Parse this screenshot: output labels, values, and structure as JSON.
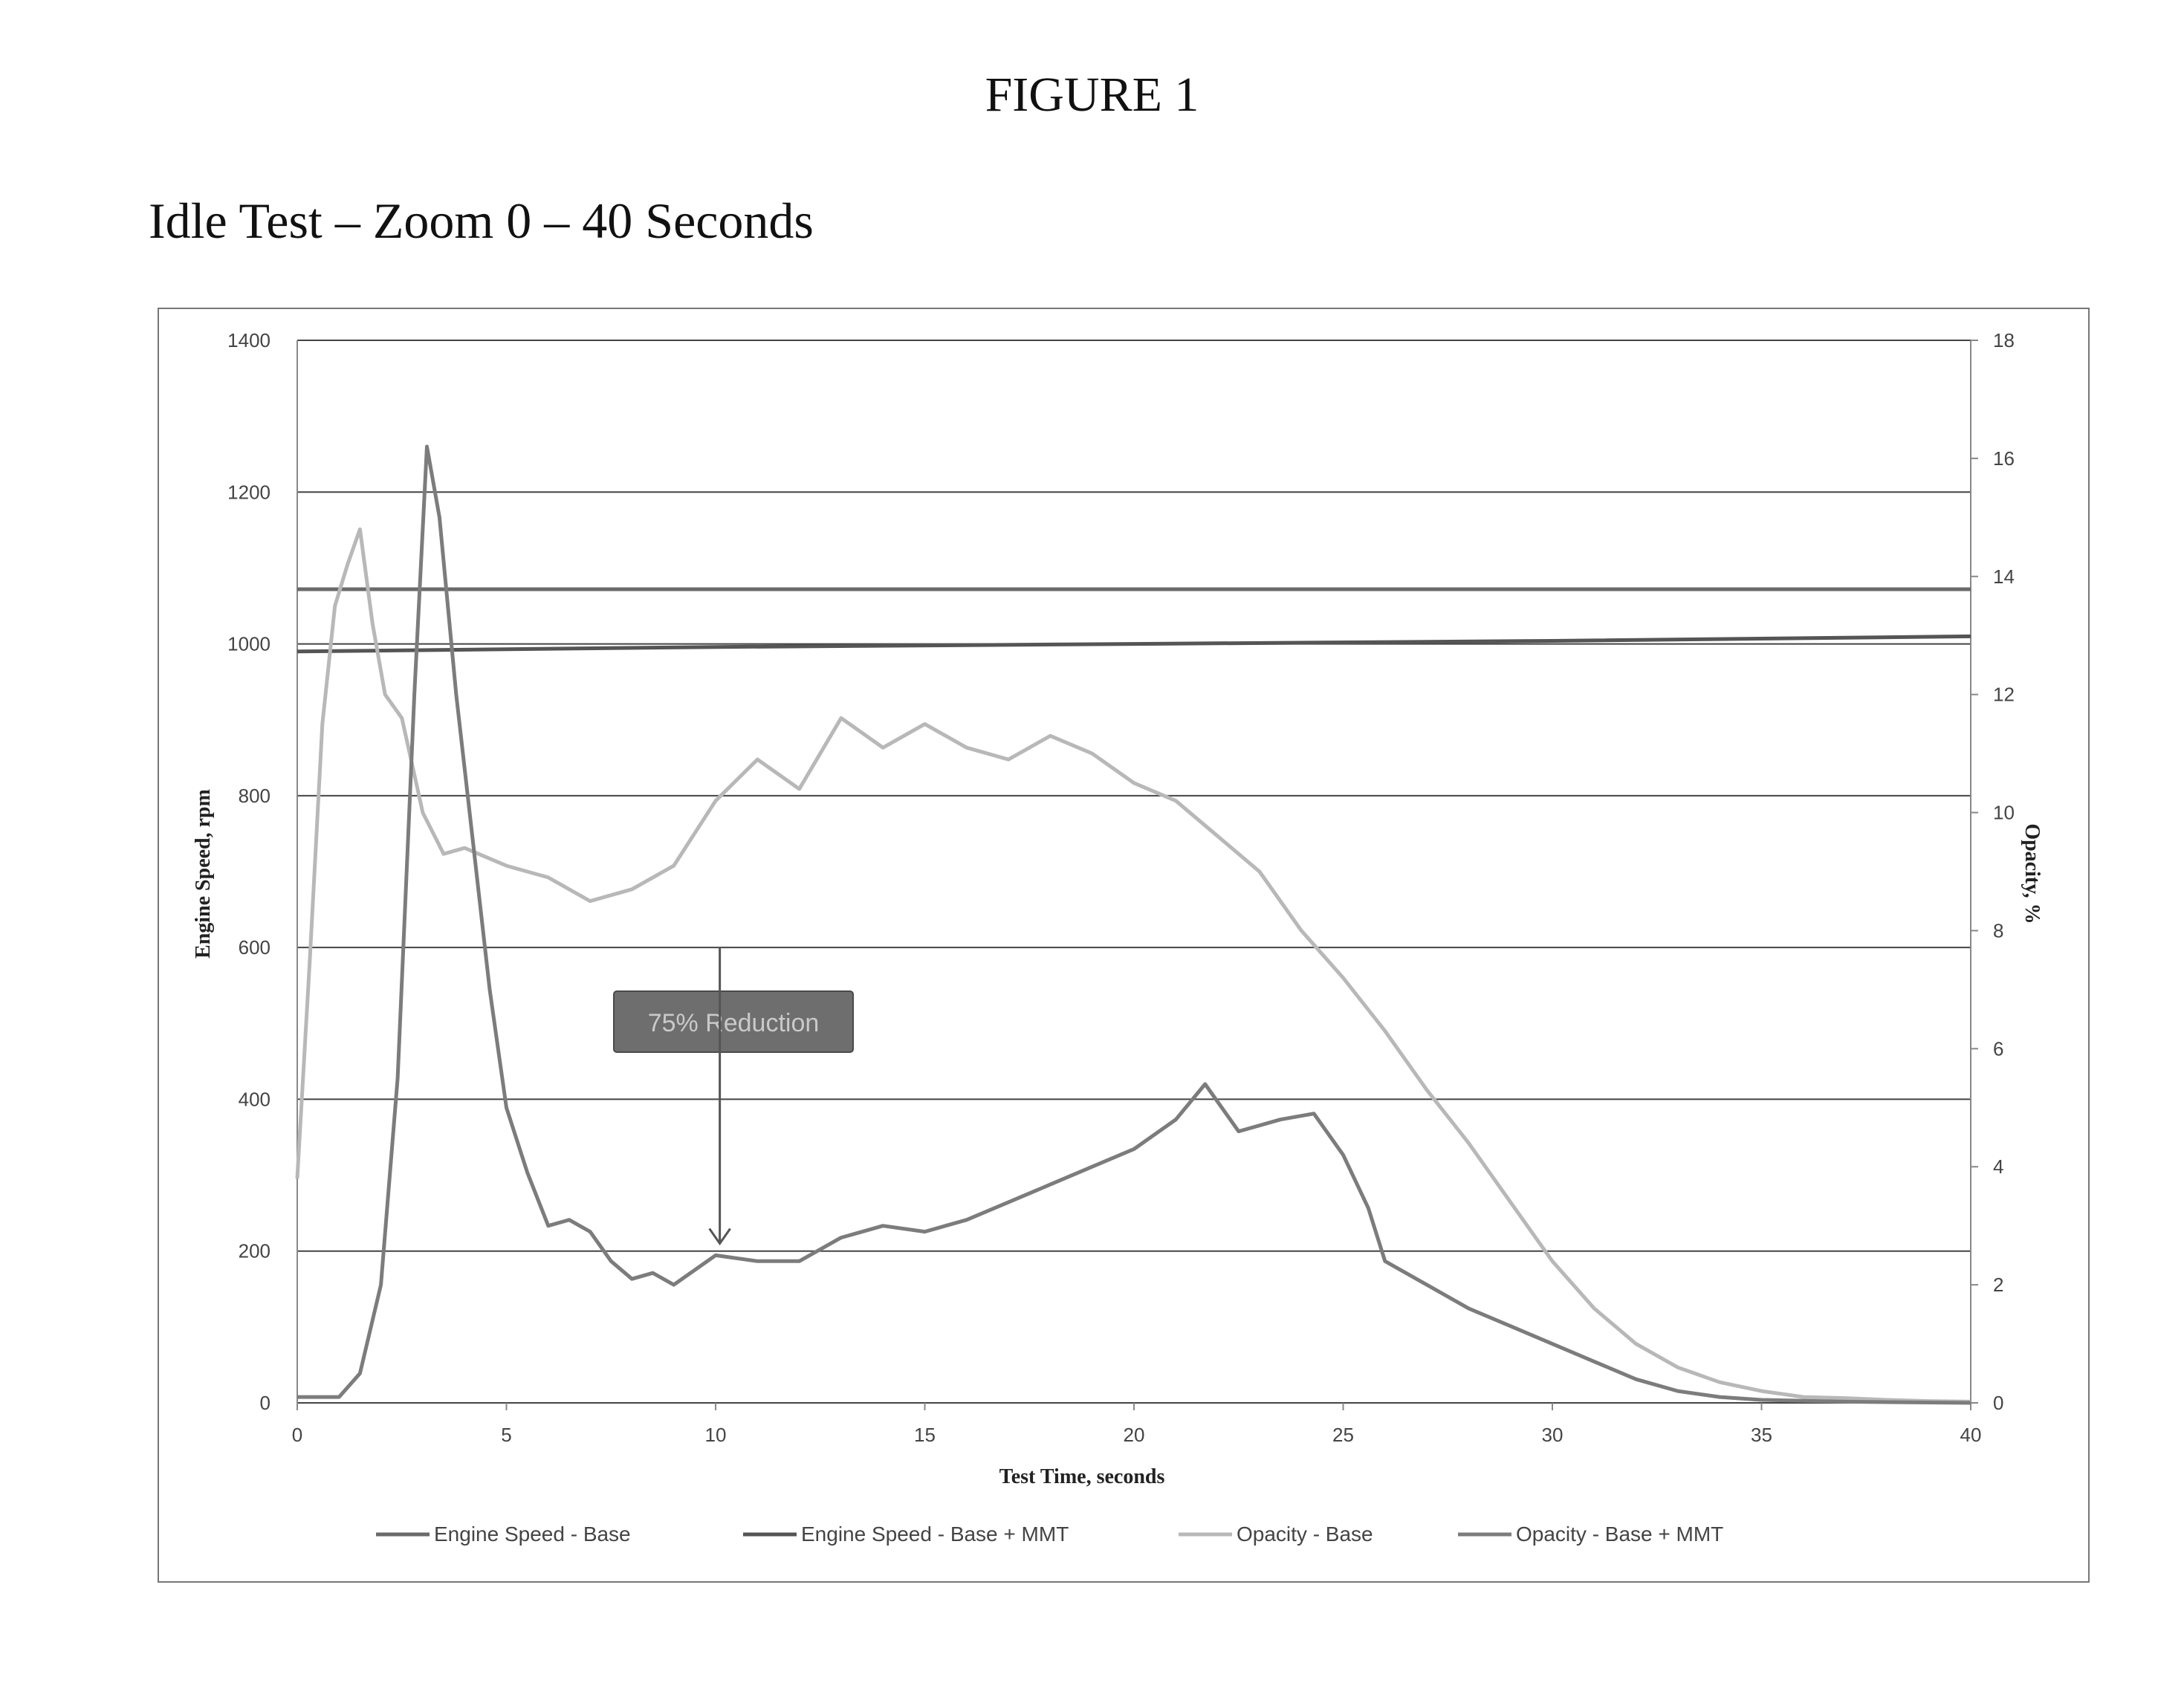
{
  "figure_title": "FIGURE 1",
  "chart_heading": "Idle Test – Zoom 0 – 40 Seconds",
  "colors": {
    "engine_base": "#6a6a6a",
    "engine_mmt": "#555555",
    "opacity_base": "#b8b8b8",
    "opacity_mmt": "#7c7c7c",
    "grid": "#444444",
    "annotation_box": "#6e6e6e"
  },
  "chart_data": {
    "type": "line",
    "xlabel": "Test Time, seconds",
    "ylabel": "Engine Speed, rpm",
    "y2label": "Opacity, %",
    "xlim": [
      0,
      40
    ],
    "ylim": [
      0,
      1400
    ],
    "y2lim": [
      0,
      18
    ],
    "xticks": [
      0,
      5,
      10,
      15,
      20,
      25,
      30,
      35,
      40
    ],
    "yticks": [
      0,
      200,
      400,
      600,
      800,
      1000,
      1200,
      1400
    ],
    "y2ticks": [
      0,
      2,
      4,
      6,
      8,
      10,
      12,
      14,
      16,
      18
    ],
    "grid": "horizontal",
    "legend_position": "bottom",
    "annotation": {
      "text": "75% Reduction",
      "arrow_x": 10.1,
      "arrow_top_y": 600,
      "arrow_bottom_y": 210
    },
    "series": [
      {
        "name": "Engine Speed - Base",
        "axis": "left",
        "x": [
          0,
          40
        ],
        "y": [
          1072,
          1072
        ]
      },
      {
        "name": "Engine Speed - Base + MMT",
        "axis": "left",
        "x": [
          0,
          10,
          20,
          30,
          40
        ],
        "y": [
          990,
          996,
          1000,
          1004,
          1010
        ]
      },
      {
        "name": "Opacity - Base",
        "axis": "right",
        "x": [
          0,
          0.3,
          0.6,
          0.9,
          1.2,
          1.5,
          1.8,
          2.1,
          2.5,
          3.0,
          3.5,
          4.0,
          5.0,
          6.0,
          7.0,
          8.0,
          9.0,
          10.0,
          11.0,
          12.0,
          13.0,
          14.0,
          15.0,
          16.0,
          17.0,
          18.0,
          19.0,
          20.0,
          21.0,
          22.0,
          23.0,
          24.0,
          25.0,
          26.0,
          27.0,
          28.0,
          29.0,
          30.0,
          31.0,
          32.0,
          33.0,
          34.0,
          35.0,
          36.0,
          37.0,
          38.0,
          39.0,
          40.0
        ],
        "y": [
          3.8,
          7.5,
          11.5,
          13.5,
          14.2,
          14.8,
          13.2,
          12.0,
          11.6,
          10.0,
          9.3,
          9.4,
          9.1,
          8.9,
          8.5,
          8.7,
          9.1,
          10.2,
          10.9,
          10.4,
          11.6,
          11.1,
          11.5,
          11.1,
          10.9,
          11.3,
          11.0,
          10.5,
          10.2,
          9.6,
          9.0,
          8.0,
          7.2,
          6.3,
          5.3,
          4.4,
          3.4,
          2.4,
          1.6,
          1.0,
          0.6,
          0.35,
          0.2,
          0.1,
          0.08,
          0.05,
          0.03,
          0.02
        ]
      },
      {
        "name": "Opacity - Base + MMT",
        "axis": "right",
        "x": [
          0,
          1.0,
          1.5,
          2.0,
          2.4,
          2.8,
          3.1,
          3.4,
          3.8,
          4.2,
          4.6,
          5.0,
          5.5,
          6.0,
          6.5,
          7.0,
          7.5,
          8.0,
          8.5,
          9.0,
          10.0,
          11.0,
          12.0,
          13.0,
          14.0,
          15.0,
          16.0,
          17.0,
          18.0,
          19.0,
          20.0,
          21.0,
          21.7,
          22.5,
          23.5,
          24.3,
          25.0,
          25.6,
          26.0,
          27.0,
          28.0,
          29.0,
          30.0,
          31.0,
          32.0,
          33.0,
          34.0,
          35.0,
          37.0,
          40.0
        ],
        "y": [
          0.1,
          0.1,
          0.5,
          2.0,
          5.5,
          12.0,
          16.2,
          15.0,
          12.0,
          9.5,
          7.0,
          5.0,
          3.9,
          3.0,
          3.1,
          2.9,
          2.4,
          2.1,
          2.2,
          2.0,
          2.5,
          2.4,
          2.4,
          2.8,
          3.0,
          2.9,
          3.1,
          3.4,
          3.7,
          4.0,
          4.3,
          4.8,
          5.4,
          4.6,
          4.8,
          4.9,
          4.2,
          3.3,
          2.4,
          2.0,
          1.6,
          1.3,
          1.0,
          0.7,
          0.4,
          0.2,
          0.1,
          0.05,
          0.02,
          0.0
        ]
      }
    ]
  }
}
